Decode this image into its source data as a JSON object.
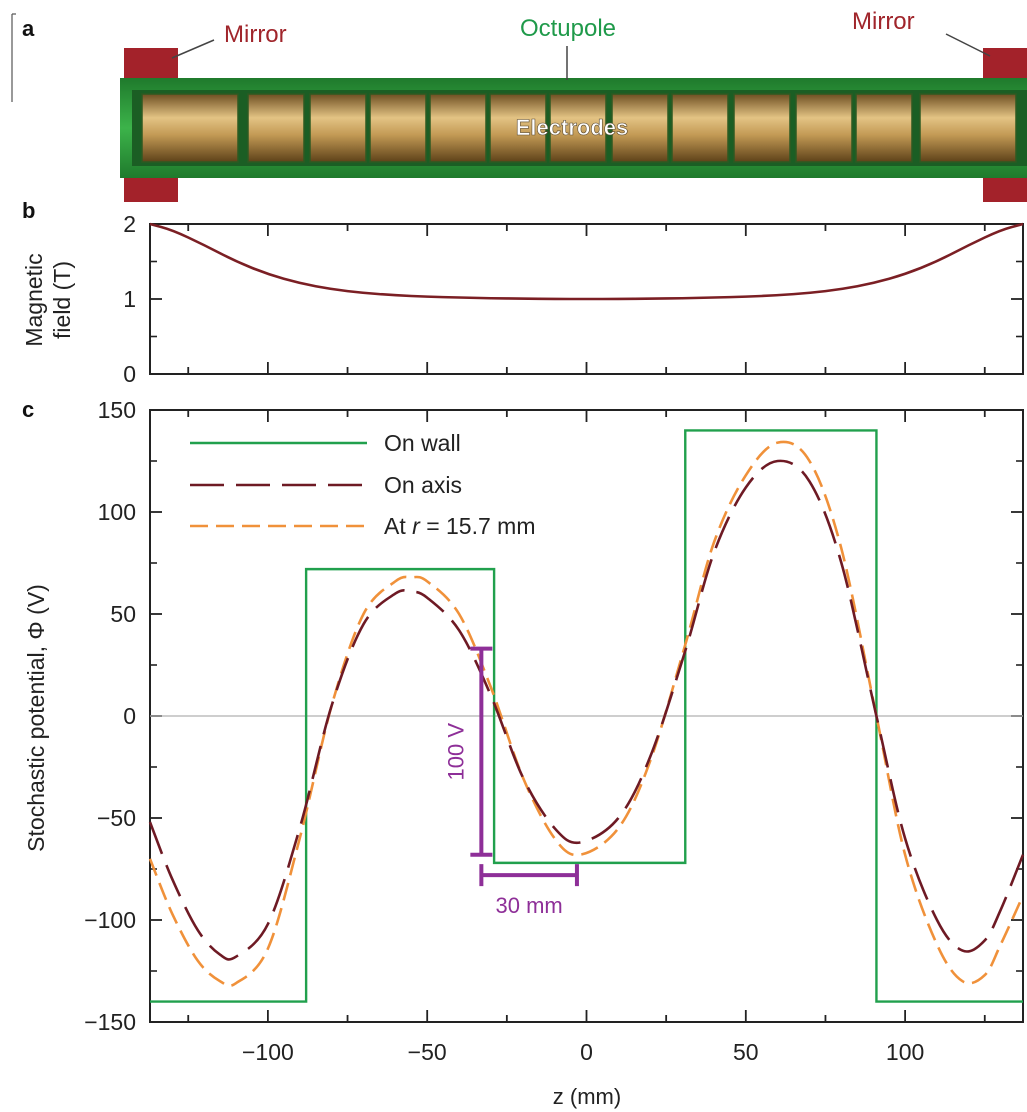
{
  "panels": {
    "a": {
      "label": "a",
      "mirror_left": "Mirror",
      "octupole": "Octupole",
      "mirror_right": "Mirror",
      "electrodes": "Electrodes"
    },
    "b": {
      "label": "b"
    },
    "c": {
      "label": "c"
    }
  },
  "colors": {
    "mirror_text": "#a0252b",
    "mirror_block": "#a3222a",
    "octupole_text": "#1f9a4a",
    "octupole_tube": "#2e9a3a",
    "electrode": "#b5894a",
    "field_line": "#7b1f24",
    "on_wall": "#21a04d",
    "on_axis": "#6e1a24",
    "at_r": "#f0913a",
    "annotation": "#8e2f98",
    "zero_line": "#b0b0b0"
  },
  "chart_data": [
    {
      "panel": "b",
      "type": "line",
      "ylabel": [
        "Magnetic",
        "field (T)"
      ],
      "xlim": [
        -137,
        137
      ],
      "ylim": [
        0,
        2
      ],
      "yticks": [
        "0",
        "1",
        "2"
      ],
      "series": [
        {
          "x": [
            -137,
            -130,
            -120,
            -110,
            -100,
            -90,
            -80,
            -70,
            -60,
            -50,
            -40,
            -30,
            -20,
            -10,
            0,
            10,
            20,
            30,
            40,
            50,
            60,
            70,
            80,
            90,
            100,
            110,
            120,
            130,
            137
          ],
          "y": [
            2.0,
            1.92,
            1.72,
            1.5,
            1.33,
            1.21,
            1.13,
            1.08,
            1.05,
            1.03,
            1.02,
            1.01,
            1.005,
            1.0,
            1.0,
            1.0,
            1.005,
            1.01,
            1.02,
            1.03,
            1.05,
            1.08,
            1.13,
            1.21,
            1.33,
            1.5,
            1.72,
            1.92,
            2.0
          ]
        }
      ]
    },
    {
      "panel": "c",
      "type": "line",
      "xlabel": "z (mm)",
      "ylabel": "Stochastic potential, Φ (V)",
      "xlim": [
        -137,
        137
      ],
      "ylim": [
        -150,
        150
      ],
      "xticks": [
        "−100",
        "−50",
        "0",
        "50",
        "100"
      ],
      "yticks": [
        "−150",
        "−100",
        "−50",
        "0",
        "50",
        "100",
        "150"
      ],
      "legend": {
        "placement": "top-left",
        "entries": [
          "On wall",
          "On axis",
          "At ",
          "r",
          " = 15.7 mm"
        ]
      },
      "series": [
        {
          "name": "On wall",
          "style": "solid",
          "step_x": [
            -137,
            -88,
            -88,
            -29,
            -29,
            31,
            31,
            91,
            91,
            137
          ],
          "step_y": [
            -140,
            -140,
            72,
            72,
            -72,
            -72,
            140,
            140,
            -140,
            -140
          ]
        },
        {
          "name": "On axis",
          "style": "long-dash",
          "x": [
            -137,
            -130,
            -122,
            -115,
            -110,
            -100,
            -90,
            -80,
            -70,
            -60,
            -55,
            -50,
            -40,
            -30,
            -20,
            -10,
            -2,
            10,
            20,
            31,
            40,
            50,
            60,
            70,
            80,
            91,
            100,
            110,
            118,
            125,
            130,
            137
          ],
          "y": [
            -52,
            -80,
            -105,
            -117,
            -118,
            -102,
            -55,
            5,
            45,
            60,
            61,
            58,
            42,
            10,
            -30,
            -55,
            -62,
            -50,
            -20,
            32,
            80,
            112,
            125,
            115,
            75,
            0,
            -60,
            -100,
            -115,
            -110,
            -95,
            -68
          ]
        },
        {
          "name": "At r = 15.7 mm",
          "style": "short-dash",
          "x": [
            -137,
            -130,
            -122,
            -115,
            -110,
            -100,
            -90,
            -80,
            -70,
            -60,
            -55,
            -50,
            -40,
            -30,
            -20,
            -10,
            -2,
            10,
            20,
            31,
            40,
            50,
            60,
            70,
            80,
            91,
            100,
            110,
            118,
            125,
            130,
            137
          ],
          "y": [
            -70,
            -97,
            -120,
            -130,
            -131,
            -114,
            -60,
            5,
            50,
            66,
            68,
            66,
            50,
            14,
            -30,
            -60,
            -68,
            -55,
            -22,
            35,
            85,
            118,
            134,
            125,
            82,
            0,
            -68,
            -112,
            -130,
            -127,
            -112,
            -88
          ]
        }
      ],
      "annotations": {
        "vertical_bar": {
          "text": "100 V",
          "x": -33,
          "y_from": -68,
          "y_to": 33
        },
        "horizontal_bar": {
          "text": "30 mm",
          "x_from": -33,
          "x_to": -3,
          "y": -78
        }
      }
    }
  ]
}
